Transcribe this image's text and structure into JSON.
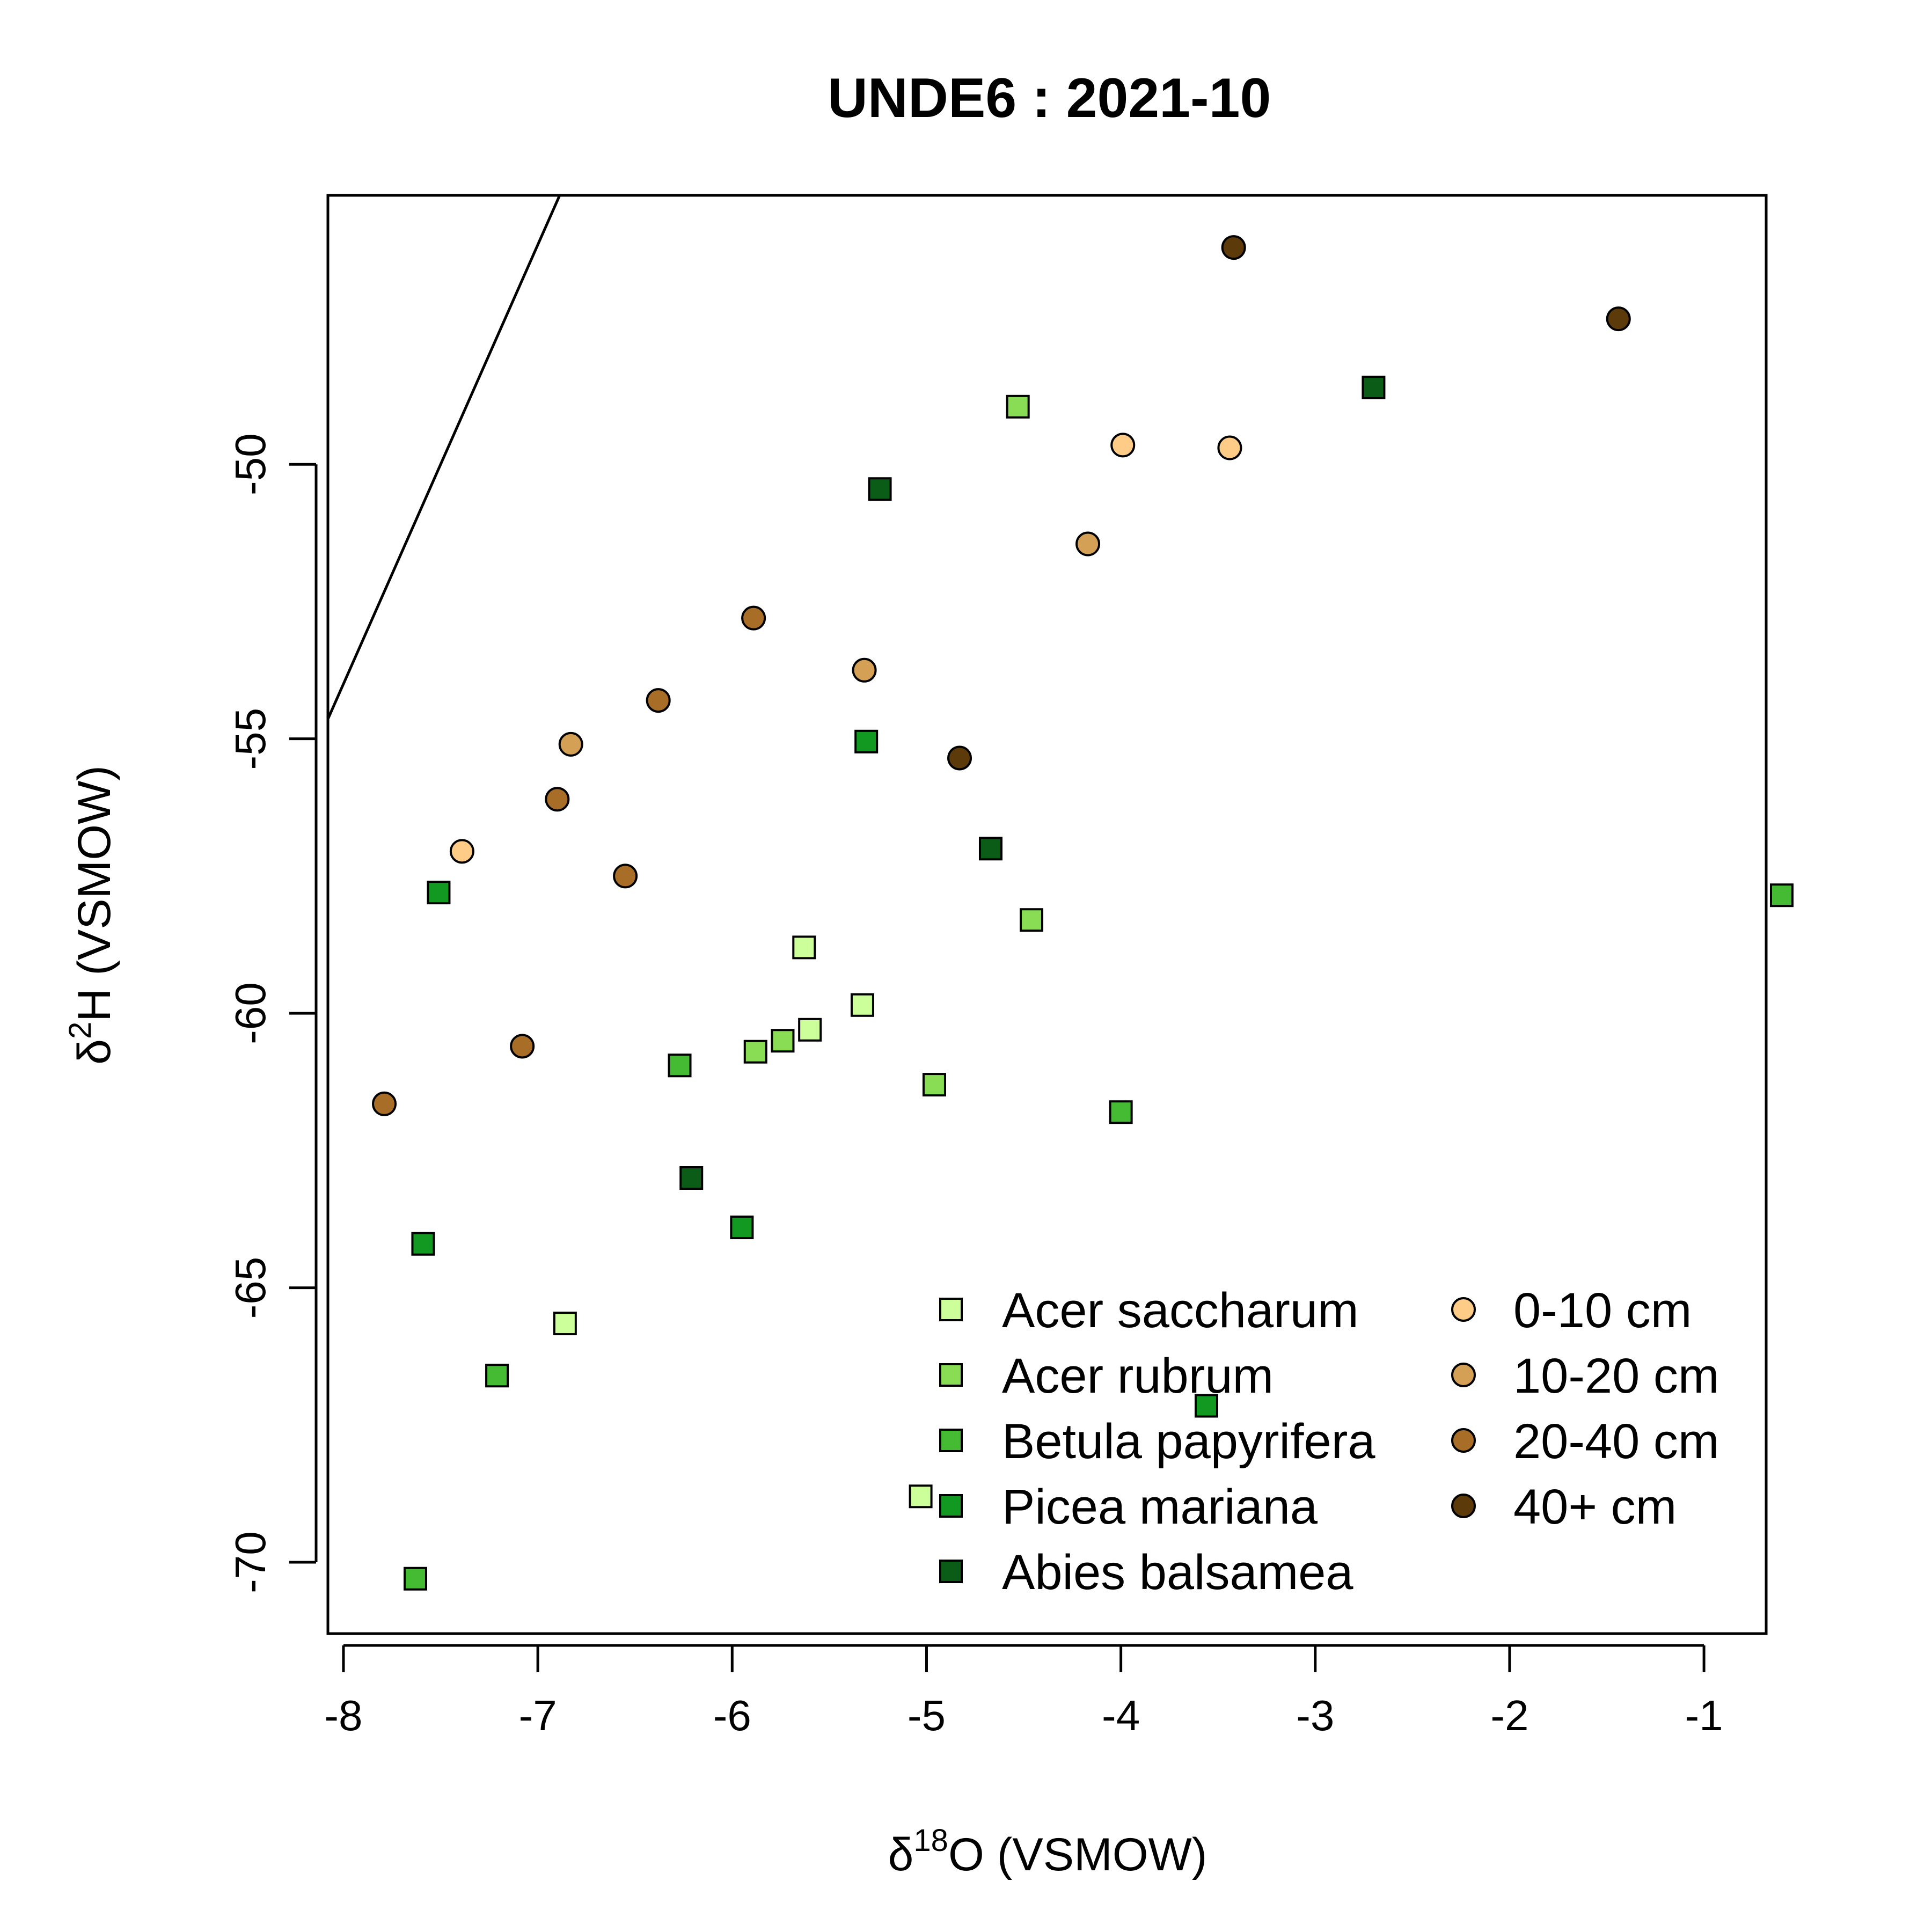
{
  "chart_data": {
    "type": "scatter",
    "title": "UNDE6 : 2021-10",
    "xlabel": {
      "prefix": "δ",
      "sup": "18",
      "suffix": "O (VSMOW)"
    },
    "ylabel": {
      "prefix": "δ",
      "sup": "2",
      "suffix": "H (VSMOW)"
    },
    "xlim": [
      -8.08,
      -0.68
    ],
    "ylim": [
      -71.3,
      -45.1
    ],
    "xticks": [
      -8,
      -7,
      -6,
      -5,
      -4,
      -3,
      -2,
      -1
    ],
    "xtick_labels": [
      "-8",
      "-7",
      "-6",
      "-5",
      "-4",
      "-3",
      "-2",
      "-1"
    ],
    "yticks": [
      -70,
      -65,
      -60,
      -55,
      -50
    ],
    "ytick_labels": [
      "-70",
      "-65",
      "-60",
      "-55",
      "-50"
    ],
    "grid": false,
    "reference_line": {
      "slope": 8,
      "intercept": 10
    },
    "legend": {
      "position": "bottom-right",
      "left_column": [
        {
          "label": "Acer saccharum",
          "shape": "square",
          "color": "#ccff99"
        },
        {
          "label": "Acer rubrum",
          "shape": "square",
          "color": "#88dd55"
        },
        {
          "label": "Betula papyrifera",
          "shape": "square",
          "color": "#44bb33"
        },
        {
          "label": "Picea mariana",
          "shape": "square",
          "color": "#119922"
        },
        {
          "label": "Abies balsamea",
          "shape": "square",
          "color": "#0a5c16"
        }
      ],
      "right_column": [
        {
          "label": "0-10 cm",
          "shape": "circle",
          "color": "#ffcc88"
        },
        {
          "label": "10-20 cm",
          "shape": "circle",
          "color": "#d4a055"
        },
        {
          "label": "20-40 cm",
          "shape": "circle",
          "color": "#a86e28"
        },
        {
          "label": "40+ cm",
          "shape": "circle",
          "color": "#5c3a0a"
        }
      ]
    },
    "series": [
      {
        "name": "Acer saccharum",
        "shape": "square",
        "color": "#ccff99",
        "points": [
          [
            -5.63,
            -58.8
          ],
          [
            -5.33,
            -59.85
          ],
          [
            -5.6,
            -60.3
          ],
          [
            -6.86,
            -65.65
          ],
          [
            -5.03,
            -68.8
          ]
        ]
      },
      {
        "name": "Acer rubrum",
        "shape": "square",
        "color": "#88dd55",
        "points": [
          [
            -4.53,
            -48.95
          ],
          [
            -4.46,
            -58.3
          ],
          [
            -5.74,
            -60.5
          ],
          [
            -5.88,
            -60.7
          ],
          [
            -4.96,
            -61.3
          ]
        ]
      },
      {
        "name": "Betula papyrifera",
        "shape": "square",
        "color": "#44bb33",
        "points": [
          [
            -6.27,
            -60.95
          ],
          [
            -4.0,
            -61.8
          ],
          [
            -7.21,
            -66.6
          ],
          [
            -0.6,
            -57.85
          ],
          [
            -7.63,
            -70.3
          ]
        ]
      },
      {
        "name": "Picea mariana",
        "shape": "square",
        "color": "#119922",
        "points": [
          [
            -7.51,
            -57.8
          ],
          [
            -5.31,
            -55.05
          ],
          [
            -5.95,
            -63.9
          ],
          [
            -7.59,
            -64.2
          ],
          [
            -3.56,
            -67.15
          ]
        ]
      },
      {
        "name": "Abies balsamea",
        "shape": "square",
        "color": "#0a5c16",
        "points": [
          [
            -2.7,
            -48.6
          ],
          [
            -5.24,
            -50.45
          ],
          [
            -4.67,
            -57.0
          ],
          [
            -6.21,
            -63.0
          ]
        ]
      },
      {
        "name": "0-10 cm",
        "shape": "circle",
        "color": "#ffcc88",
        "points": [
          [
            -3.99,
            -49.65
          ],
          [
            -3.44,
            -49.7
          ],
          [
            -7.39,
            -57.05
          ]
        ]
      },
      {
        "name": "10-20 cm",
        "shape": "circle",
        "color": "#d4a055",
        "points": [
          [
            -4.17,
            -51.45
          ],
          [
            -5.32,
            -53.75
          ],
          [
            -6.83,
            -55.1
          ]
        ]
      },
      {
        "name": "20-40 cm",
        "shape": "circle",
        "color": "#a86e28",
        "points": [
          [
            -5.89,
            -52.8
          ],
          [
            -6.38,
            -54.3
          ],
          [
            -6.9,
            -56.1
          ],
          [
            -6.55,
            -57.5
          ],
          [
            -7.08,
            -60.6
          ],
          [
            -7.79,
            -61.65
          ]
        ]
      },
      {
        "name": "40+ cm",
        "shape": "circle",
        "color": "#5c3a0a",
        "points": [
          [
            -3.42,
            -46.05
          ],
          [
            -1.44,
            -47.35
          ],
          [
            -4.83,
            -55.35
          ]
        ]
      }
    ]
  }
}
